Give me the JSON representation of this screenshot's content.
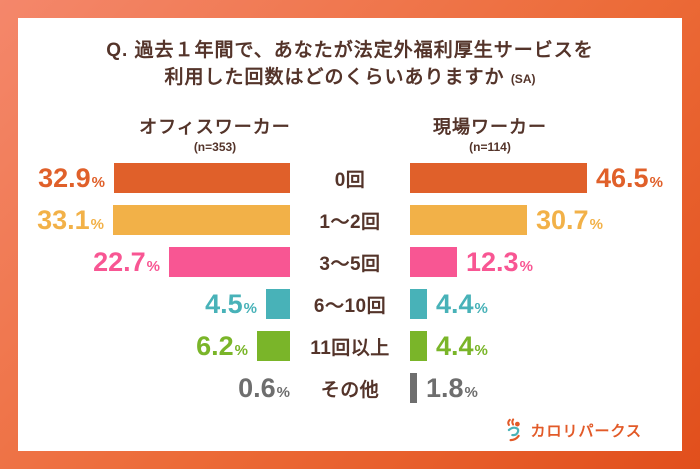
{
  "title": {
    "line1": "Q. 過去１年間で、あなたが法定外福利厚生サービスを",
    "line2": "利用した回数はどのくらいありますか",
    "sa": "(SA)"
  },
  "groups": [
    {
      "name": "オフィスワーカー",
      "n_label": "(n=353)"
    },
    {
      "name": "現場ワーカー",
      "n_label": "(n=114)"
    }
  ],
  "chart_data": {
    "type": "bar",
    "variant": "butterfly",
    "title": "Q. 過去１年間で、あなたが法定外福利厚生サービスを利用した回数はどのくらいありますか (SA)",
    "categories": [
      "0回",
      "1〜2回",
      "3〜5回",
      "6〜10回",
      "11回以上",
      "その他"
    ],
    "unit": "%",
    "series": [
      {
        "name": "オフィスワーカー",
        "n": 353,
        "values": [
          32.9,
          33.1,
          22.7,
          4.5,
          6.2,
          0.6
        ]
      },
      {
        "name": "現場ワーカー",
        "n": 114,
        "values": [
          46.5,
          30.7,
          12.3,
          4.4,
          4.4,
          1.8
        ]
      }
    ],
    "category_colors": [
      "#E0602A",
      "#F2B148",
      "#F85693",
      "#48B2B8",
      "#7AB529",
      "#6E6E6E"
    ],
    "legend_position": "center-labels",
    "axis": "hidden"
  },
  "logo": {
    "text": "カロリパークス"
  },
  "colors": {
    "frame_gradient_start": "#F4876B",
    "frame_gradient_end": "#E14F1C",
    "text_brown": "#54342A",
    "other_gray": "#6E6E6E",
    "logo_orange": "#E25A28",
    "logo_teal": "#48B2B8"
  }
}
